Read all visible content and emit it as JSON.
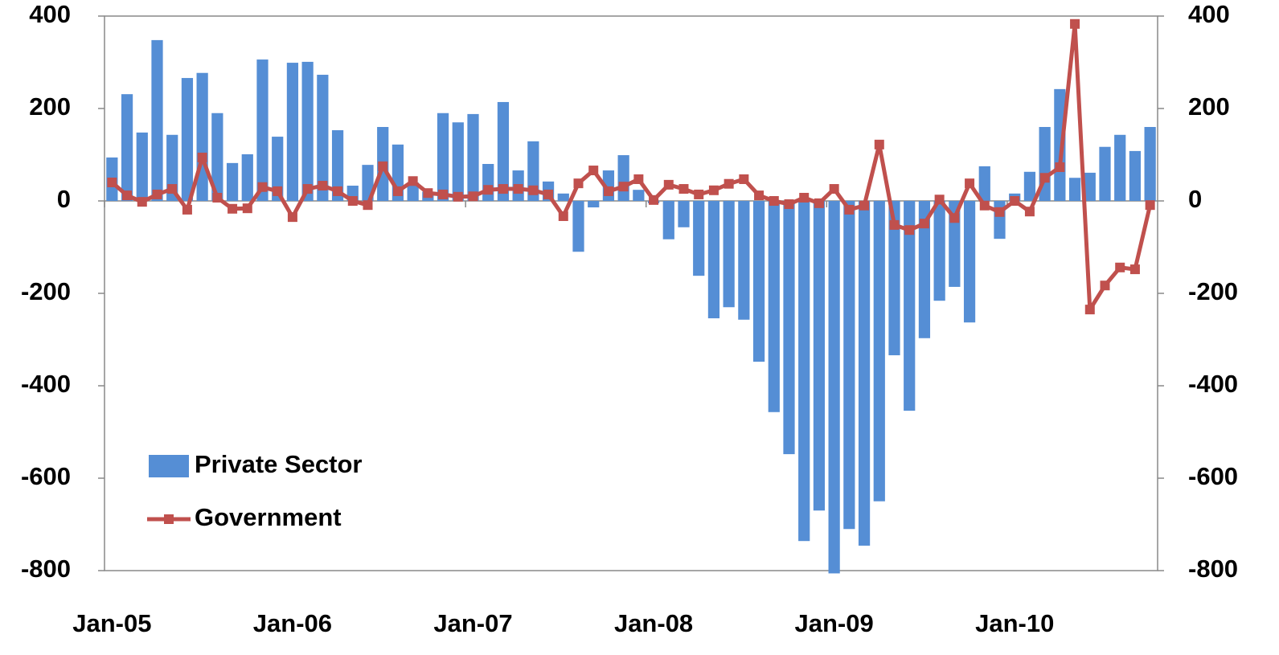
{
  "chart_data": {
    "type": "bar-line",
    "categories": [
      "Jan-05",
      null,
      null,
      null,
      null,
      null,
      null,
      null,
      null,
      null,
      null,
      null,
      "Jan-06",
      null,
      null,
      null,
      null,
      null,
      null,
      null,
      null,
      null,
      null,
      null,
      "Jan-07",
      null,
      null,
      null,
      null,
      null,
      null,
      null,
      null,
      null,
      null,
      null,
      "Jan-08",
      null,
      null,
      null,
      null,
      null,
      null,
      null,
      null,
      null,
      null,
      null,
      "Jan-09",
      null,
      null,
      null,
      null,
      null,
      null,
      null,
      null,
      null,
      null,
      null,
      "Jan-10",
      null,
      null,
      null,
      null,
      null,
      null,
      null,
      null,
      null
    ],
    "series": [
      {
        "name": "Private Sector",
        "type": "bar",
        "color": "#558ed5",
        "axis": "y",
        "values": [
          94,
          231,
          148,
          348,
          143,
          266,
          277,
          190,
          82,
          101,
          306,
          139,
          299,
          301,
          273,
          153,
          33,
          78,
          160,
          122,
          40,
          20,
          190,
          170,
          188,
          80,
          214,
          66,
          129,
          42,
          16,
          -110,
          -14,
          66,
          99,
          24,
          -5,
          -83,
          -57,
          -162,
          -254,
          -230,
          -257,
          -348,
          -457,
          -548,
          -736,
          -670,
          -806,
          -710,
          -746,
          -650,
          -334,
          -454,
          -297,
          -216,
          -186,
          -263,
          75,
          -82,
          16,
          63,
          160,
          242,
          50,
          61,
          117,
          143,
          108,
          160
        ]
      },
      {
        "name": "Government",
        "type": "line",
        "color": "#c0504d",
        "axis": "y2",
        "values": [
          40,
          12,
          -2,
          14,
          26,
          -19,
          94,
          7,
          -17,
          -16,
          30,
          21,
          -35,
          26,
          33,
          21,
          0,
          -9,
          75,
          21,
          43,
          17,
          14,
          9,
          10,
          24,
          26,
          26,
          23,
          14,
          -33,
          38,
          66,
          21,
          31,
          47,
          2,
          35,
          26,
          14,
          23,
          37,
          47,
          12,
          0,
          -7,
          7,
          -5,
          26,
          -19,
          -10,
          122,
          -52,
          -63,
          -49,
          3,
          -37,
          38,
          -10,
          -24,
          0,
          -23,
          50,
          73,
          383,
          -235,
          -183,
          -144,
          -148,
          -9
        ]
      }
    ],
    "ylim": [
      -800,
      400
    ],
    "yticks": [
      -800,
      -600,
      -400,
      -200,
      0,
      200,
      400
    ],
    "y2lim": [
      -800,
      400
    ],
    "y2ticks": [
      -800,
      -600,
      -400,
      -200,
      0,
      200,
      400
    ],
    "legend": "lower-left"
  }
}
